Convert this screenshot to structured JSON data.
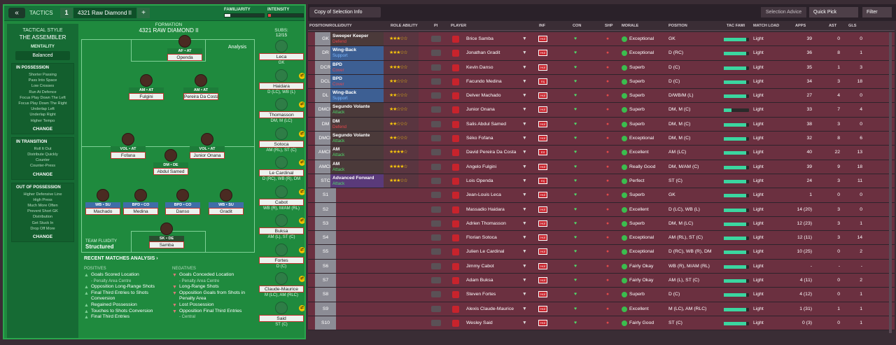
{
  "topbar": {
    "back": "«",
    "tactics": "TACTICS",
    "slot": "1",
    "formation": "4321 Raw Diamond II",
    "plus": "+",
    "familiarity_label": "FAMILIARITY",
    "familiarity": 0.15,
    "intensity_label": "INTENSITY",
    "intensity": 0.08
  },
  "tactical": {
    "title": "TACTICAL STYLE",
    "style": "THE ASSEMBLER",
    "mentality_label": "MENTALITY",
    "mentality": "Balanced",
    "blocks": [
      {
        "head": "IN POSSESSION",
        "items": [
          "Shorter Passing",
          "Pass Into Space",
          "Low Crosses",
          "Run At Defence",
          "Focus Play Down The Left",
          "Focus Play Down The Right",
          "Underlap Left",
          "Underlap Right",
          "Higher Tempo"
        ],
        "change": "CHANGE"
      },
      {
        "head": "IN TRANSITION",
        "items": [
          "Roll It Out",
          "Distribute Quickly",
          "Counter",
          "Counter-Press"
        ],
        "change": "CHANGE"
      },
      {
        "head": "OUT OF POSSESSION",
        "items": [
          "Higher Defensive Line",
          "High Press",
          "Much More Often",
          "Prevent Short GK",
          "Distribution",
          "Get Stuck In",
          "Drop Off More"
        ],
        "change": "CHANGE"
      }
    ]
  },
  "formation": {
    "label": "FORMATION",
    "name": "4321 RAW DIAMOND II",
    "analysis": "Analysis",
    "fluidity_label": "TEAM FLUIDITY",
    "fluidity": "Structured"
  },
  "pitch_players": [
    {
      "pos": "AF • AT",
      "name": "Openda"
    },
    {
      "pos": "AM • AT",
      "name": "Fulgini"
    },
    {
      "pos": "AM • AT",
      "name": "Pereira Da Costa"
    },
    {
      "pos": "VOL • AT",
      "name": "Fofana"
    },
    {
      "pos": "VOL • AT",
      "name": "Junior Onana"
    },
    {
      "pos": "DM • DE",
      "name": "Abdul Samed"
    },
    {
      "pos": "WB • SU",
      "name": "Machado"
    },
    {
      "pos": "BPD • CO",
      "name": "Medina"
    },
    {
      "pos": "BPD • CO",
      "name": "Danso"
    },
    {
      "pos": "WB • SU",
      "name": "Gradit"
    },
    {
      "pos": "SK • DE",
      "name": "Samba"
    }
  ],
  "subs": {
    "label": "SUBS:",
    "count": "12/15",
    "list": [
      {
        "name": "Leca",
        "pos": "GK"
      },
      {
        "name": "Haidara",
        "pos": "D (LC), WB (L)"
      },
      {
        "name": "Thomasson",
        "pos": "DM, M (LC)"
      },
      {
        "name": "Sotoca",
        "pos": "AM (RL), ST (C)"
      },
      {
        "name": "Le Cardinal",
        "pos": "D (RC), WB (R), DM"
      },
      {
        "name": "Cabot",
        "pos": "WB (R), M/AM (RL)"
      },
      {
        "name": "Buksa",
        "pos": "AM (L), ST (C)"
      },
      {
        "name": "Fortes",
        "pos": "D (C)"
      },
      {
        "name": "Claude-Maurice",
        "pos": "M (LC), AM (RLC)"
      },
      {
        "name": "Said",
        "pos": "ST (C)"
      }
    ]
  },
  "recent": {
    "title": "RECENT MATCHES ANALYSIS ›",
    "pos_label": "POSITIVES",
    "neg_label": "NEGATIVES",
    "positives": [
      [
        "Goals Scored Location",
        "Penalty Area Centre"
      ],
      [
        "Opposition Long-Range Shots",
        ""
      ],
      [
        "Final Third Entries to Shots Conversion",
        ""
      ],
      [
        "Regained Possession",
        ""
      ],
      [
        "Touches to Shots Conversion",
        ""
      ],
      [
        "Final Third Entries",
        ""
      ]
    ],
    "negatives": [
      [
        "Goals Conceded Location",
        "Penalty Area Centre"
      ],
      [
        "Long-Range Shots",
        ""
      ],
      [
        "Opposition Goals from Shots in Penalty Area",
        ""
      ],
      [
        "Lost Possession",
        ""
      ],
      [
        "Opposition Final Third Entries",
        "Central"
      ]
    ]
  },
  "right": {
    "view": "Copy of Selection Info",
    "selection_advice": "Selection Advice",
    "quick_pick": "Quick Pick",
    "filter": "Filter"
  },
  "columns": [
    "POSITION/ROLE/DUTY",
    "ROLE ABILITY",
    "PI",
    "PLAYER",
    "INF",
    "CON",
    "SHP",
    "MORALE",
    "POSITION",
    "TAC FAMI",
    "MATCH LOAD",
    "APPS",
    "AST",
    "GLS"
  ],
  "rows": [
    {
      "code": "GK",
      "role": "Sweeper Keeper",
      "duty": "Defend",
      "dc": "#e8474b",
      "rc": "#4b3a3a",
      "stars": "★★★☆☆",
      "player": "Brice Samba",
      "inf": "Hol",
      "mor": "Exceptional",
      "pos": "GK",
      "tf": 0.9,
      "ml": "Light",
      "apps": "39",
      "ast": "0",
      "gls": "0"
    },
    {
      "code": "DR",
      "role": "Wing-Back",
      "duty": "Support",
      "dc": "#7ab7ff",
      "rc": "#3d5f93",
      "stars": "★★★☆☆",
      "player": "Jonathan Gradit",
      "inf": "Hol",
      "mor": "Exceptional",
      "pos": "D (RC)",
      "tf": 0.9,
      "ml": "Light",
      "apps": "36",
      "ast": "8",
      "gls": "1"
    },
    {
      "code": "DCR",
      "role": "BPD",
      "duty": "Cover",
      "dc": "#e8474b",
      "rc": "#3d5f93",
      "stars": "★★★☆☆",
      "player": "Kevin Danso",
      "inf": "Hol",
      "mor": "Superb",
      "pos": "D (C)",
      "tf": 0.9,
      "ml": "Light",
      "apps": "35",
      "ast": "1",
      "gls": "3"
    },
    {
      "code": "DCL",
      "role": "BPD",
      "duty": "Cover",
      "dc": "#e8474b",
      "rc": "#3d5f93",
      "stars": "★★☆☆☆",
      "player": "Facundo Medina",
      "inf": "Inj",
      "mor": "Superb",
      "pos": "D (C)",
      "tf": 0.9,
      "ml": "Light",
      "apps": "34",
      "ast": "3",
      "gls": "18"
    },
    {
      "code": "DL",
      "role": "Wing-Back",
      "duty": "Support",
      "dc": "#7ab7ff",
      "rc": "#3d5f93",
      "stars": "★★☆☆☆",
      "player": "Delver Machado",
      "inf": "Hol",
      "mor": "Superb",
      "pos": "D/WB/M (L)",
      "tf": 0.9,
      "ml": "Light",
      "apps": "27",
      "ast": "4",
      "gls": "0"
    },
    {
      "code": "DMCR",
      "role": "Segundo Volante",
      "duty": "Attack",
      "dc": "#4fdb6a",
      "rc": "#4b3a3a",
      "stars": "★★☆☆☆",
      "player": "Junior Onana",
      "inf": "Hol",
      "mor": "Superb",
      "pos": "DM, M (C)",
      "tf": 0.3,
      "ml": "Light",
      "apps": "33",
      "ast": "7",
      "gls": "4"
    },
    {
      "code": "DM",
      "role": "DM",
      "duty": "Defend",
      "dc": "#e8474b",
      "rc": "#4b3a3a",
      "stars": "★★☆☆☆",
      "player": "Salis Abdul Samed",
      "inf": "Hol",
      "mor": "Superb",
      "pos": "DM, M (C)",
      "tf": 0.9,
      "ml": "Light",
      "apps": "38",
      "ast": "3",
      "gls": "0"
    },
    {
      "code": "DMCL",
      "role": "Segundo Volante",
      "duty": "Attack",
      "dc": "#4fdb6a",
      "rc": "#4b3a3a",
      "stars": "★★☆☆☆",
      "player": "Séko Fofana",
      "inf": "Hol",
      "mor": "Exceptional",
      "pos": "DM, M (C)",
      "tf": 0.9,
      "ml": "Light",
      "apps": "32",
      "ast": "8",
      "gls": "6"
    },
    {
      "code": "AMCR",
      "role": "AM",
      "duty": "Attack",
      "dc": "#4fdb6a",
      "rc": "#4b3a3a",
      "stars": "★★★★☆",
      "player": "David Pereira Da Costa",
      "inf": "Int",
      "mor": "Excellent",
      "pos": "AM (LC)",
      "tf": 0.9,
      "ml": "Light",
      "apps": "40",
      "ast": "22",
      "gls": "13"
    },
    {
      "code": "AMCL",
      "role": "AM",
      "duty": "Attack",
      "dc": "#4fdb6a",
      "rc": "#4b3a3a",
      "stars": "★★★★☆",
      "player": "Angelo Fulgini",
      "inf": "Hol",
      "mor": "Really Good",
      "pos": "DM, M/AM (C)",
      "tf": 0.9,
      "ml": "Light",
      "apps": "39",
      "ast": "9",
      "gls": "18"
    },
    {
      "code": "STC",
      "role": "Advanced Forward",
      "duty": "Attack",
      "dc": "#4fdb6a",
      "rc": "#5a3a7a",
      "stars": "★★★☆☆",
      "player": "Lois Openda",
      "inf": "Inj",
      "mor": "Perfect",
      "pos": "ST (C)",
      "tf": 0.9,
      "ml": "Light",
      "apps": "24",
      "ast": "3",
      "gls": "11"
    },
    {
      "code": "S1",
      "role": "",
      "duty": "",
      "dc": "",
      "rc": "",
      "stars": "",
      "player": "Jean-Louis Leca",
      "inf": "Hol",
      "mor": "Superb",
      "pos": "GK",
      "tf": 0.9,
      "ml": "Light",
      "apps": "1",
      "ast": "0",
      "gls": "0"
    },
    {
      "code": "S2",
      "role": "",
      "duty": "",
      "dc": "",
      "rc": "",
      "stars": "",
      "player": "Massadio Haidara",
      "inf": "Hol",
      "mor": "Excellent",
      "pos": "D (LC), WB (L)",
      "tf": 0.9,
      "ml": "Light",
      "apps": "14 (20)",
      "ast": "3",
      "gls": "0"
    },
    {
      "code": "S3",
      "role": "",
      "duty": "",
      "dc": "",
      "rc": "",
      "stars": "",
      "player": "Adrien Thomasson",
      "inf": "Hol",
      "mor": "Superb",
      "pos": "DM, M (LC)",
      "tf": 0.9,
      "ml": "Light",
      "apps": "12 (23)",
      "ast": "3",
      "gls": "1"
    },
    {
      "code": "S4",
      "role": "",
      "duty": "",
      "dc": "",
      "rc": "",
      "stars": "",
      "player": "Florian Sotoca",
      "inf": "Hol",
      "mor": "Exceptional",
      "pos": "AM (RL), ST (C)",
      "tf": 0.9,
      "ml": "Light",
      "apps": "12 (11)",
      "ast": "3",
      "gls": "14"
    },
    {
      "code": "S5",
      "role": "",
      "duty": "",
      "dc": "",
      "rc": "",
      "stars": "",
      "player": "Julien Le Cardinal",
      "inf": "Hol",
      "mor": "Exceptional",
      "pos": "D (RC), WB (R), DM",
      "tf": 0.9,
      "ml": "Light",
      "apps": "10 (25)",
      "ast": "0",
      "gls": "2"
    },
    {
      "code": "S6",
      "role": "",
      "duty": "",
      "dc": "",
      "rc": "",
      "stars": "",
      "player": "Jimmy Cabot",
      "inf": "Hol",
      "mor": "Fairly Okay",
      "pos": "WB (R), M/AM (RL)",
      "tf": 0.9,
      "ml": "Light",
      "apps": "-",
      "ast": "-",
      "gls": "-"
    },
    {
      "code": "S7",
      "role": "",
      "duty": "",
      "dc": "",
      "rc": "",
      "stars": "",
      "player": "Adam Buksa",
      "inf": "Hol",
      "mor": "Fairly Okay",
      "pos": "AM (L), ST (C)",
      "tf": 0.9,
      "ml": "Light",
      "apps": "4 (11)",
      "ast": "0",
      "gls": "2"
    },
    {
      "code": "S8",
      "role": "",
      "duty": "",
      "dc": "",
      "rc": "",
      "stars": "",
      "player": "Steven Fortes",
      "inf": "Hol",
      "mor": "Superb",
      "pos": "D (C)",
      "tf": 0.9,
      "ml": "Light",
      "apps": "4 (12)",
      "ast": "0",
      "gls": "1"
    },
    {
      "code": "S9",
      "role": "",
      "duty": "",
      "dc": "",
      "rc": "",
      "stars": "",
      "player": "Alexis Claude-Maurice",
      "inf": "Hol",
      "mor": "Excellent",
      "pos": "M (LC), AM (RLC)",
      "tf": 0.9,
      "ml": "Light",
      "apps": "1 (31)",
      "ast": "1",
      "gls": "1"
    },
    {
      "code": "S10",
      "role": "",
      "duty": "",
      "dc": "",
      "rc": "",
      "stars": "",
      "player": "Wesley Said",
      "inf": "Hol",
      "mor": "Fairly Good",
      "pos": "ST (C)",
      "tf": 0.9,
      "ml": "Light",
      "apps": "0 (3)",
      "ast": "0",
      "gls": "1"
    }
  ]
}
